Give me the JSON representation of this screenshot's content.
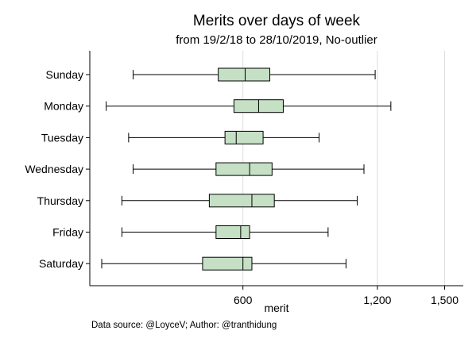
{
  "chart_data": {
    "type": "boxplot",
    "title": "Merits over days of week",
    "subtitle": "from 19/2/18 to 28/10/2019, No-outlier",
    "xlabel": "merit",
    "ylabel": "",
    "xlim": [
      -30,
      1530
    ],
    "xticks": [
      {
        "value": 600,
        "label": "600"
      },
      {
        "value": 1200,
        "label": "1,200"
      },
      {
        "value": 1500,
        "label": "1,500"
      }
    ],
    "grid": "vertical",
    "legend": "none",
    "box_color": "#c5e0c5",
    "line_color": "#000000",
    "grid_color": "#dddddd",
    "categories": [
      "Sunday",
      "Monday",
      "Tuesday",
      "Wednesday",
      "Thursday",
      "Friday",
      "Saturday"
    ],
    "boxes": [
      {
        "whisker_low": 110,
        "q1": 490,
        "median": 610,
        "q3": 720,
        "whisker_high": 1190
      },
      {
        "whisker_low": -10,
        "q1": 560,
        "median": 670,
        "q3": 780,
        "whisker_high": 1260
      },
      {
        "whisker_low": 90,
        "q1": 520,
        "median": 570,
        "q3": 690,
        "whisker_high": 940
      },
      {
        "whisker_low": 110,
        "q1": 480,
        "median": 630,
        "q3": 730,
        "whisker_high": 1140
      },
      {
        "whisker_low": 60,
        "q1": 450,
        "median": 640,
        "q3": 740,
        "whisker_high": 1110
      },
      {
        "whisker_low": 60,
        "q1": 480,
        "median": 590,
        "q3": 630,
        "whisker_high": 980
      },
      {
        "whisker_low": -30,
        "q1": 420,
        "median": 600,
        "q3": 640,
        "whisker_high": 1060
      }
    ]
  },
  "footer": {
    "source_note": "Data source: @LoyceV; Author: @tranthidung"
  }
}
